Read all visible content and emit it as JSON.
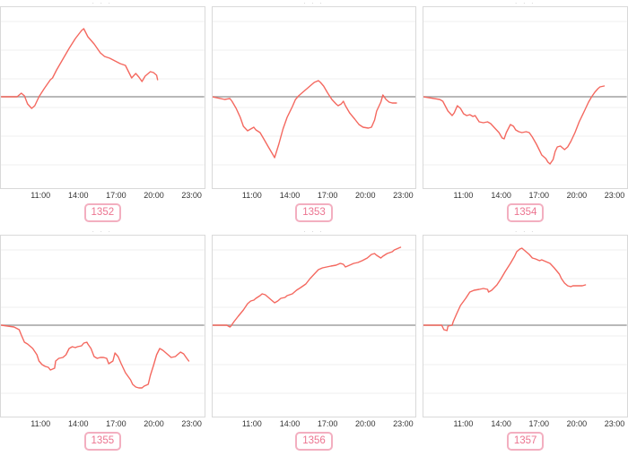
{
  "page": {
    "background": "#ffffff",
    "cropped_title_fragment": "· · ·"
  },
  "layout_hints": {
    "grid": {
      "rows": 2,
      "cols": 3
    },
    "x_axis": {
      "axis_start": "07:47",
      "axis_end": "24:04",
      "ticks": [
        "11:00",
        "14:00",
        "17:00",
        "20:00",
        "23:00"
      ]
    },
    "y_axis": {
      "tick_labels_visible": false,
      "units": "relative (no labels shown)",
      "zero_line": true,
      "gridlines": "horizontal, faint"
    },
    "colors": {
      "line": "#f4685f",
      "zero_line": "#a0a0a0",
      "grid_line": "#efefef",
      "box_border": "#d9d9d9",
      "tick_text": "#333333",
      "badge_text": "#ec7490",
      "badge_border": "#f3afc0",
      "background": "#ffffff"
    }
  },
  "chart_data": [
    {
      "type": "line",
      "badge_label": "1352",
      "x": [
        "07:50",
        "09:05",
        "09:25",
        "09:40",
        "09:55",
        "10:15",
        "10:30",
        "10:50",
        "11:15",
        "11:45",
        "11:55",
        "12:15",
        "12:45",
        "13:15",
        "13:45",
        "14:15",
        "14:25",
        "14:45",
        "15:15",
        "15:45",
        "16:05",
        "16:30",
        "16:55",
        "17:20",
        "17:45",
        "18:00",
        "18:15",
        "18:35",
        "18:50",
        "19:05",
        "19:20",
        "19:45",
        "20:00",
        "20:15",
        "20:20"
      ],
      "values": [
        0,
        0,
        0.04,
        0.01,
        -0.08,
        -0.13,
        -0.1,
        0,
        0.09,
        0.19,
        0.21,
        0.3,
        0.42,
        0.54,
        0.65,
        0.74,
        0.76,
        0.67,
        0.59,
        0.49,
        0.45,
        0.43,
        0.4,
        0.37,
        0.35,
        0.28,
        0.21,
        0.26,
        0.22,
        0.17,
        0.23,
        0.28,
        0.27,
        0.24,
        0.19
      ]
    },
    {
      "type": "line",
      "badge_label": "1353",
      "x": [
        "07:45",
        "08:45",
        "09:10",
        "09:20",
        "09:40",
        "10:00",
        "10:15",
        "10:35",
        "10:50",
        "11:05",
        "11:15",
        "11:35",
        "11:55",
        "12:15",
        "12:40",
        "12:45",
        "13:05",
        "13:25",
        "13:45",
        "14:10",
        "14:25",
        "14:40",
        "15:00",
        "15:20",
        "15:35",
        "15:55",
        "16:15",
        "16:25",
        "16:40",
        "17:00",
        "17:20",
        "17:40",
        "17:50",
        "18:05",
        "18:15",
        "18:25",
        "18:45",
        "19:10",
        "19:30",
        "19:50",
        "20:15",
        "20:30",
        "20:45",
        "20:55",
        "21:15",
        "21:25",
        "21:40",
        "21:55",
        "22:10",
        "22:30"
      ],
      "values": [
        0,
        -0.03,
        -0.02,
        -0.05,
        -0.13,
        -0.23,
        -0.33,
        -0.38,
        -0.36,
        -0.34,
        -0.37,
        -0.4,
        -0.48,
        -0.56,
        -0.66,
        -0.68,
        -0.53,
        -0.36,
        -0.23,
        -0.11,
        -0.03,
        0.01,
        0.05,
        0.09,
        0.12,
        0.16,
        0.18,
        0.16,
        0.12,
        0.04,
        -0.03,
        -0.08,
        -0.1,
        -0.08,
        -0.05,
        -0.1,
        -0.18,
        -0.25,
        -0.31,
        -0.34,
        -0.35,
        -0.34,
        -0.26,
        -0.16,
        -0.06,
        0.02,
        -0.03,
        -0.06,
        -0.07,
        -0.07
      ]
    },
    {
      "type": "line",
      "badge_label": "1354",
      "x": [
        "07:45",
        "09:05",
        "09:20",
        "09:45",
        "10:05",
        "10:15",
        "10:30",
        "10:45",
        "11:00",
        "11:15",
        "11:30",
        "11:45",
        "11:55",
        "12:15",
        "12:35",
        "12:55",
        "13:10",
        "13:30",
        "13:50",
        "14:05",
        "14:15",
        "14:25",
        "14:45",
        "15:00",
        "15:10",
        "15:25",
        "15:40",
        "16:00",
        "16:15",
        "16:30",
        "16:50",
        "17:05",
        "17:15",
        "17:35",
        "17:45",
        "17:55",
        "18:10",
        "18:20",
        "18:30",
        "18:45",
        "18:50",
        "19:05",
        "19:20",
        "19:35",
        "19:55",
        "20:15",
        "20:40",
        "21:00",
        "21:15",
        "21:30",
        "21:45",
        "21:55",
        "22:15"
      ],
      "values": [
        0,
        -0.03,
        -0.05,
        -0.16,
        -0.21,
        -0.18,
        -0.1,
        -0.13,
        -0.19,
        -0.21,
        -0.2,
        -0.22,
        -0.21,
        -0.28,
        -0.29,
        -0.28,
        -0.3,
        -0.35,
        -0.4,
        -0.46,
        -0.47,
        -0.4,
        -0.31,
        -0.33,
        -0.37,
        -0.39,
        -0.4,
        -0.39,
        -0.4,
        -0.45,
        -0.53,
        -0.6,
        -0.65,
        -0.69,
        -0.73,
        -0.75,
        -0.7,
        -0.61,
        -0.56,
        -0.55,
        -0.56,
        -0.59,
        -0.56,
        -0.5,
        -0.4,
        -0.28,
        -0.16,
        -0.06,
        0.0,
        0.05,
        0.09,
        0.11,
        0.12
      ]
    },
    {
      "type": "line",
      "badge_label": "1355",
      "x": [
        "07:50",
        "08:50",
        "09:15",
        "09:25",
        "09:40",
        "09:55",
        "10:10",
        "10:20",
        "10:40",
        "10:50",
        "11:05",
        "11:20",
        "11:35",
        "11:45",
        "12:05",
        "12:10",
        "12:25",
        "12:45",
        "13:00",
        "13:15",
        "13:30",
        "13:45",
        "13:55",
        "14:15",
        "14:25",
        "14:40",
        "14:45",
        "15:00",
        "15:15",
        "15:30",
        "15:45",
        "16:00",
        "16:15",
        "16:25",
        "16:45",
        "16:55",
        "17:10",
        "17:25",
        "17:45",
        "18:10",
        "18:20",
        "18:35",
        "18:50",
        "19:05",
        "19:15",
        "19:35",
        "19:45",
        "20:00",
        "20:15",
        "20:30",
        "20:45",
        "21:00",
        "21:15",
        "21:25",
        "21:45",
        "21:55",
        "22:10",
        "22:25",
        "22:40",
        "22:50"
      ],
      "values": [
        0,
        -0.02,
        -0.05,
        -0.11,
        -0.19,
        -0.21,
        -0.24,
        -0.26,
        -0.33,
        -0.4,
        -0.44,
        -0.46,
        -0.47,
        -0.5,
        -0.48,
        -0.4,
        -0.37,
        -0.36,
        -0.33,
        -0.26,
        -0.24,
        -0.25,
        -0.24,
        -0.23,
        -0.2,
        -0.19,
        -0.21,
        -0.26,
        -0.35,
        -0.37,
        -0.36,
        -0.36,
        -0.37,
        -0.43,
        -0.4,
        -0.31,
        -0.35,
        -0.43,
        -0.53,
        -0.61,
        -0.66,
        -0.69,
        -0.7,
        -0.7,
        -0.68,
        -0.66,
        -0.56,
        -0.45,
        -0.33,
        -0.26,
        -0.28,
        -0.31,
        -0.34,
        -0.36,
        -0.35,
        -0.33,
        -0.3,
        -0.32,
        -0.37,
        -0.4
      ]
    },
    {
      "type": "line",
      "badge_label": "1356",
      "x": [
        "07:45",
        "08:55",
        "09:10",
        "09:15",
        "09:30",
        "09:50",
        "10:15",
        "10:35",
        "10:50",
        "11:05",
        "11:15",
        "11:35",
        "11:45",
        "12:00",
        "12:15",
        "12:30",
        "12:45",
        "13:00",
        "13:15",
        "13:35",
        "13:45",
        "14:10",
        "14:30",
        "14:50",
        "15:15",
        "15:35",
        "15:55",
        "16:15",
        "16:35",
        "16:55",
        "17:15",
        "17:40",
        "18:00",
        "18:15",
        "18:25",
        "18:45",
        "19:05",
        "19:25",
        "19:45",
        "20:10",
        "20:30",
        "20:45",
        "20:55",
        "21:15",
        "21:25",
        "21:45",
        "22:10",
        "22:20",
        "22:40",
        "22:50"
      ],
      "values": [
        0,
        0,
        -0.02,
        -0.01,
        0.04,
        0.1,
        0.17,
        0.24,
        0.27,
        0.28,
        0.3,
        0.33,
        0.35,
        0.34,
        0.31,
        0.28,
        0.25,
        0.27,
        0.3,
        0.31,
        0.33,
        0.35,
        0.39,
        0.42,
        0.46,
        0.52,
        0.57,
        0.62,
        0.64,
        0.65,
        0.66,
        0.67,
        0.69,
        0.68,
        0.65,
        0.67,
        0.69,
        0.7,
        0.72,
        0.75,
        0.79,
        0.8,
        0.78,
        0.75,
        0.77,
        0.8,
        0.82,
        0.84,
        0.86,
        0.87
      ]
    },
    {
      "type": "line",
      "badge_label": "1357",
      "x": [
        "07:45",
        "09:15",
        "09:25",
        "09:40",
        "09:45",
        "10:05",
        "10:10",
        "10:25",
        "10:45",
        "11:10",
        "11:30",
        "11:50",
        "12:15",
        "12:35",
        "12:55",
        "13:00",
        "13:15",
        "13:40",
        "14:00",
        "14:20",
        "14:45",
        "15:05",
        "15:15",
        "15:30",
        "15:40",
        "15:50",
        "16:15",
        "16:30",
        "16:45",
        "17:05",
        "17:15",
        "17:35",
        "17:55",
        "18:15",
        "18:40",
        "18:50",
        "19:05",
        "19:20",
        "19:35",
        "19:45",
        "20:05",
        "20:30",
        "20:45"
      ],
      "values": [
        0,
        0,
        -0.05,
        -0.06,
        -0.01,
        0,
        0.04,
        0.12,
        0.22,
        0.3,
        0.37,
        0.39,
        0.4,
        0.41,
        0.4,
        0.37,
        0.39,
        0.45,
        0.52,
        0.6,
        0.69,
        0.77,
        0.82,
        0.85,
        0.86,
        0.84,
        0.79,
        0.75,
        0.74,
        0.72,
        0.73,
        0.71,
        0.69,
        0.64,
        0.57,
        0.52,
        0.47,
        0.44,
        0.43,
        0.44,
        0.44,
        0.44,
        0.45
      ]
    }
  ]
}
